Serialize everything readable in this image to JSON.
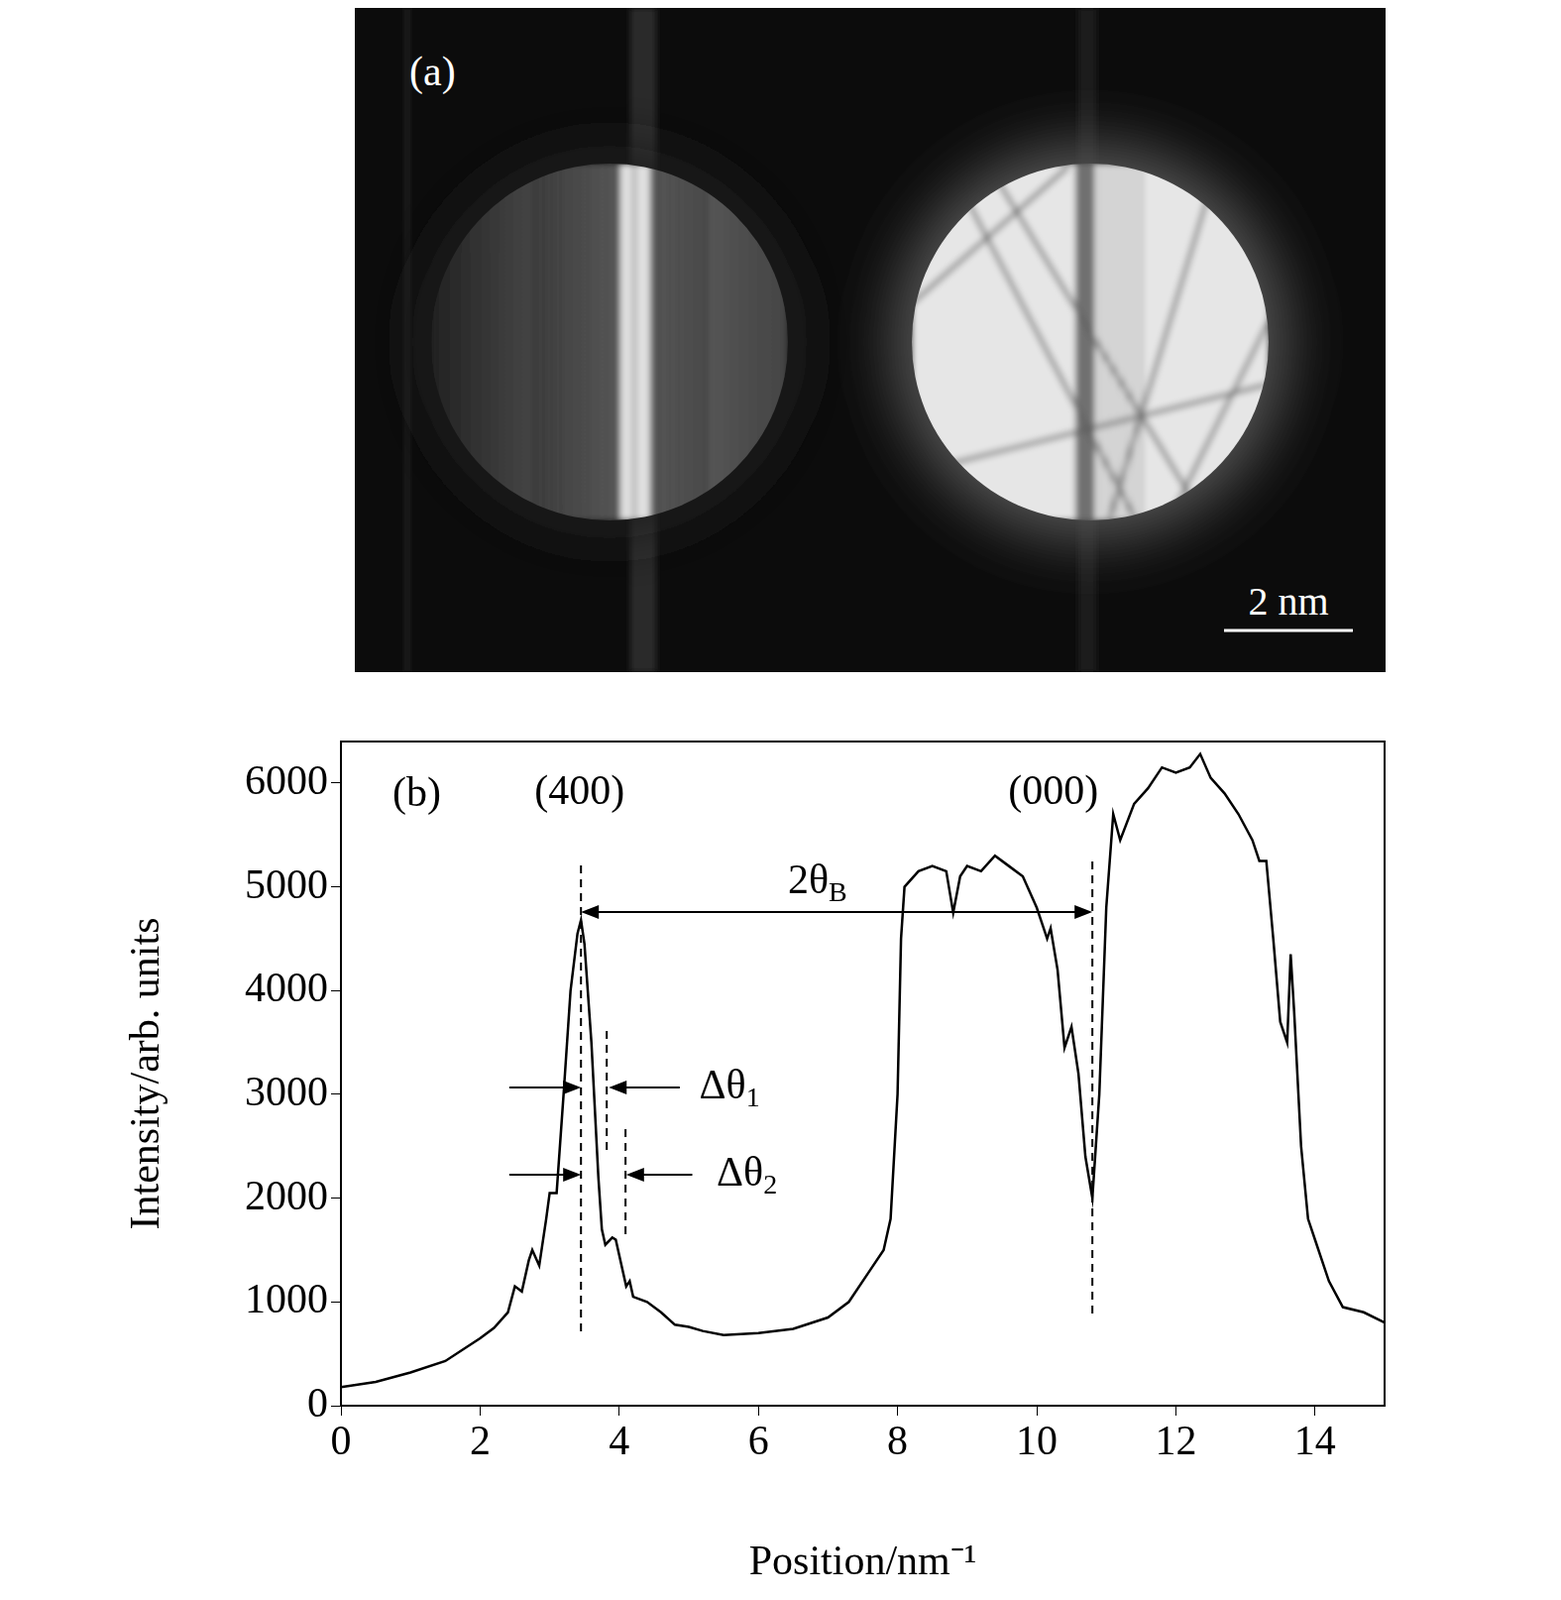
{
  "panel_a": {
    "panel_label": "(a)",
    "scale_bar_label": "2 nm"
  },
  "chart_data": {
    "type": "line",
    "panel_label": "(b)",
    "x_label": "Position/nm⁻¹",
    "y_label": "Intensity/arb. units",
    "xlim": [
      0,
      15
    ],
    "xticks": [
      0,
      2,
      4,
      6,
      8,
      10,
      12,
      14
    ],
    "ylim": [
      0,
      6400
    ],
    "yticks": [
      0,
      1000,
      2000,
      3000,
      4000,
      5000,
      6000
    ],
    "grid": false,
    "legend": false,
    "color": "#000000",
    "x": [
      0,
      0.5,
      1.0,
      1.5,
      2.0,
      2.2,
      2.4,
      2.5,
      2.6,
      2.7,
      2.75,
      2.85,
      2.95,
      3.0,
      3.1,
      3.2,
      3.3,
      3.4,
      3.45,
      3.5,
      3.6,
      3.7,
      3.75,
      3.8,
      3.9,
      3.95,
      4.0,
      4.1,
      4.15,
      4.2,
      4.4,
      4.6,
      4.8,
      5.0,
      5.2,
      5.5,
      6.0,
      6.5,
      7.0,
      7.3,
      7.6,
      7.8,
      7.9,
      8.0,
      8.05,
      8.1,
      8.3,
      8.5,
      8.7,
      8.8,
      8.9,
      9.0,
      9.2,
      9.4,
      9.6,
      9.8,
      10.0,
      10.1,
      10.15,
      10.2,
      10.3,
      10.4,
      10.5,
      10.6,
      10.7,
      10.8,
      10.9,
      11.0,
      11.1,
      11.2,
      11.4,
      11.6,
      11.8,
      12.0,
      12.2,
      12.35,
      12.5,
      12.7,
      12.9,
      13.1,
      13.2,
      13.3,
      13.4,
      13.5,
      13.6,
      13.65,
      13.7,
      13.8,
      13.9,
      14.0,
      14.2,
      14.4,
      14.7,
      15.0
    ],
    "values": [
      180,
      230,
      320,
      430,
      650,
      750,
      900,
      1150,
      1100,
      1400,
      1500,
      1350,
      1800,
      2050,
      2050,
      3000,
      4000,
      4550,
      4680,
      4450,
      3500,
      2200,
      1700,
      1550,
      1620,
      1600,
      1450,
      1150,
      1200,
      1050,
      1000,
      900,
      780,
      760,
      720,
      680,
      700,
      740,
      850,
      1000,
      1300,
      1500,
      1800,
      3000,
      4500,
      5000,
      5150,
      5200,
      5150,
      4750,
      5100,
      5200,
      5150,
      5300,
      5200,
      5100,
      4800,
      4600,
      4500,
      4600,
      4200,
      3450,
      3650,
      3200,
      2400,
      2000,
      3000,
      4800,
      5700,
      5450,
      5800,
      5950,
      6150,
      6100,
      6150,
      6280,
      6050,
      5900,
      5700,
      5450,
      5250,
      5250,
      4500,
      3700,
      3500,
      4350,
      3800,
      2500,
      1800,
      1600,
      1200,
      950,
      900,
      800
    ],
    "annotations": [
      {
        "text": "(400)",
        "x": 3.43,
        "y": 5900
      },
      {
        "text": "(000)",
        "x": 10.24,
        "y": 5900
      }
    ],
    "vlines": [
      {
        "x": 3.45,
        "ymin": 716,
        "ymax": 5253
      },
      {
        "x": 10.8,
        "ymin": 888,
        "ymax": 5253
      },
      {
        "x": 3.82,
        "ymin": 2464,
        "ymax": 3610
      },
      {
        "x": 4.09,
        "ymin": 1652,
        "ymax": 2684
      }
    ],
    "double_arrows": [
      {
        "x1": 3.45,
        "x2": 10.8,
        "y": 4756,
        "text": "2θ",
        "sub": "B",
        "text_x": 6.85,
        "text_y": 5043
      }
    ],
    "inward_arrows": [
      {
        "x1": 3.45,
        "x2": 3.85,
        "y": 3066,
        "outer_left": 2.42,
        "outer_right": 4.87,
        "text": "Δθ",
        "sub": "1",
        "text_x": 5.15,
        "text_y": 3066
      },
      {
        "x1": 3.45,
        "x2": 4.1,
        "y": 2225,
        "outer_left": 2.42,
        "outer_right": 5.05,
        "text": "Δθ",
        "sub": "2",
        "text_x": 5.4,
        "text_y": 2225
      }
    ]
  }
}
